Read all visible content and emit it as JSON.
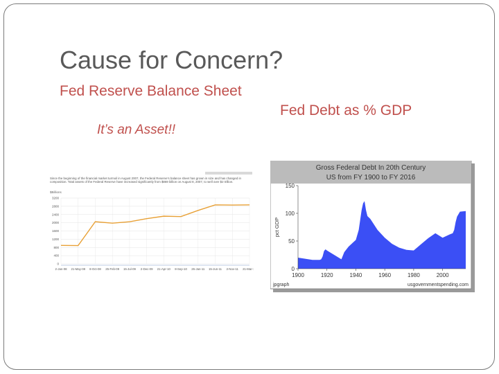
{
  "slide": {
    "title": "Cause for Concern?",
    "left_heading": "Fed Reserve Balance Sheet",
    "left_subheading": "It’s an Asset!!",
    "right_heading": "Fed Debt as % GDP"
  },
  "balance_chart": {
    "caption": "Since the beginning of the financial market turmoil in August 2007, the Federal Reserve's balance sheet has grown in size and has changed in composition. Total assets of the Federal Reserve have increased significantly from $869 billion on August 8, 2007, to well over $2 trillion.",
    "unit": "$Billions",
    "y_ticks": [
      "3200",
      "2800",
      "2400",
      "2000",
      "1600",
      "1200",
      "800",
      "400",
      "0"
    ],
    "x_ticks": [
      "2-Jan-08",
      "21-May-08",
      "8-Oct-08",
      "25-Feb-09",
      "15-Jul-09",
      "2-Dec-09",
      "21-Apr-10",
      "8-Sep-10",
      "26-Jan-11",
      "15-Jun-11",
      "2-Nov-11",
      "21-Mar-12"
    ],
    "chart_data": {
      "type": "line",
      "x": [
        "2-Jan-08",
        "21-May-08",
        "8-Oct-08",
        "25-Feb-09",
        "15-Jul-09",
        "2-Dec-09",
        "21-Apr-10",
        "8-Sep-10",
        "26-Jan-11",
        "15-Jun-11",
        "2-Nov-11",
        "21-Mar-12"
      ],
      "series": [
        {
          "values": [
            900,
            890,
            2050,
            1980,
            2050,
            2200,
            2320,
            2300,
            2600,
            2870,
            2860,
            2870
          ]
        }
      ],
      "ylim": [
        0,
        3200
      ]
    },
    "colors": {
      "line": "#e8a035",
      "grid": "#e3e3e3"
    }
  },
  "debt_chart": {
    "title_line1": "Gross Federal Debt In 20th Century",
    "title_line2": "US from FY 1900 to FY 2016",
    "ylabel": "pct GDP",
    "y_ticks": [
      "150",
      "100",
      "50",
      "0"
    ],
    "x_ticks": [
      "1900",
      "1920",
      "1940",
      "1960",
      "1980",
      "2000"
    ],
    "footer_left": "jpgraph",
    "footer_right": "usgovernmentspending.com",
    "chart_data": {
      "type": "area",
      "x": [
        1900,
        1905,
        1910,
        1915,
        1916,
        1917,
        1918,
        1919,
        1920,
        1925,
        1930,
        1932,
        1935,
        1940,
        1942,
        1943,
        1944,
        1945,
        1946,
        1947,
        1948,
        1950,
        1955,
        1960,
        1965,
        1970,
        1975,
        1980,
        1985,
        1990,
        1995,
        2000,
        2005,
        2007,
        2008,
        2009,
        2010,
        2012,
        2016
      ],
      "values": [
        20,
        18,
        16,
        16,
        17,
        22,
        32,
        35,
        33,
        25,
        17,
        30,
        40,
        52,
        70,
        88,
        106,
        118,
        122,
        106,
        95,
        90,
        70,
        56,
        45,
        38,
        34,
        33,
        44,
        55,
        64,
        56,
        62,
        64,
        70,
        84,
        94,
        103,
        104
      ],
      "ylim": [
        0,
        150
      ],
      "xlim": [
        1900,
        2016
      ]
    },
    "colors": {
      "fill": "#3b4ff5",
      "header": "#bbbbbb"
    }
  }
}
